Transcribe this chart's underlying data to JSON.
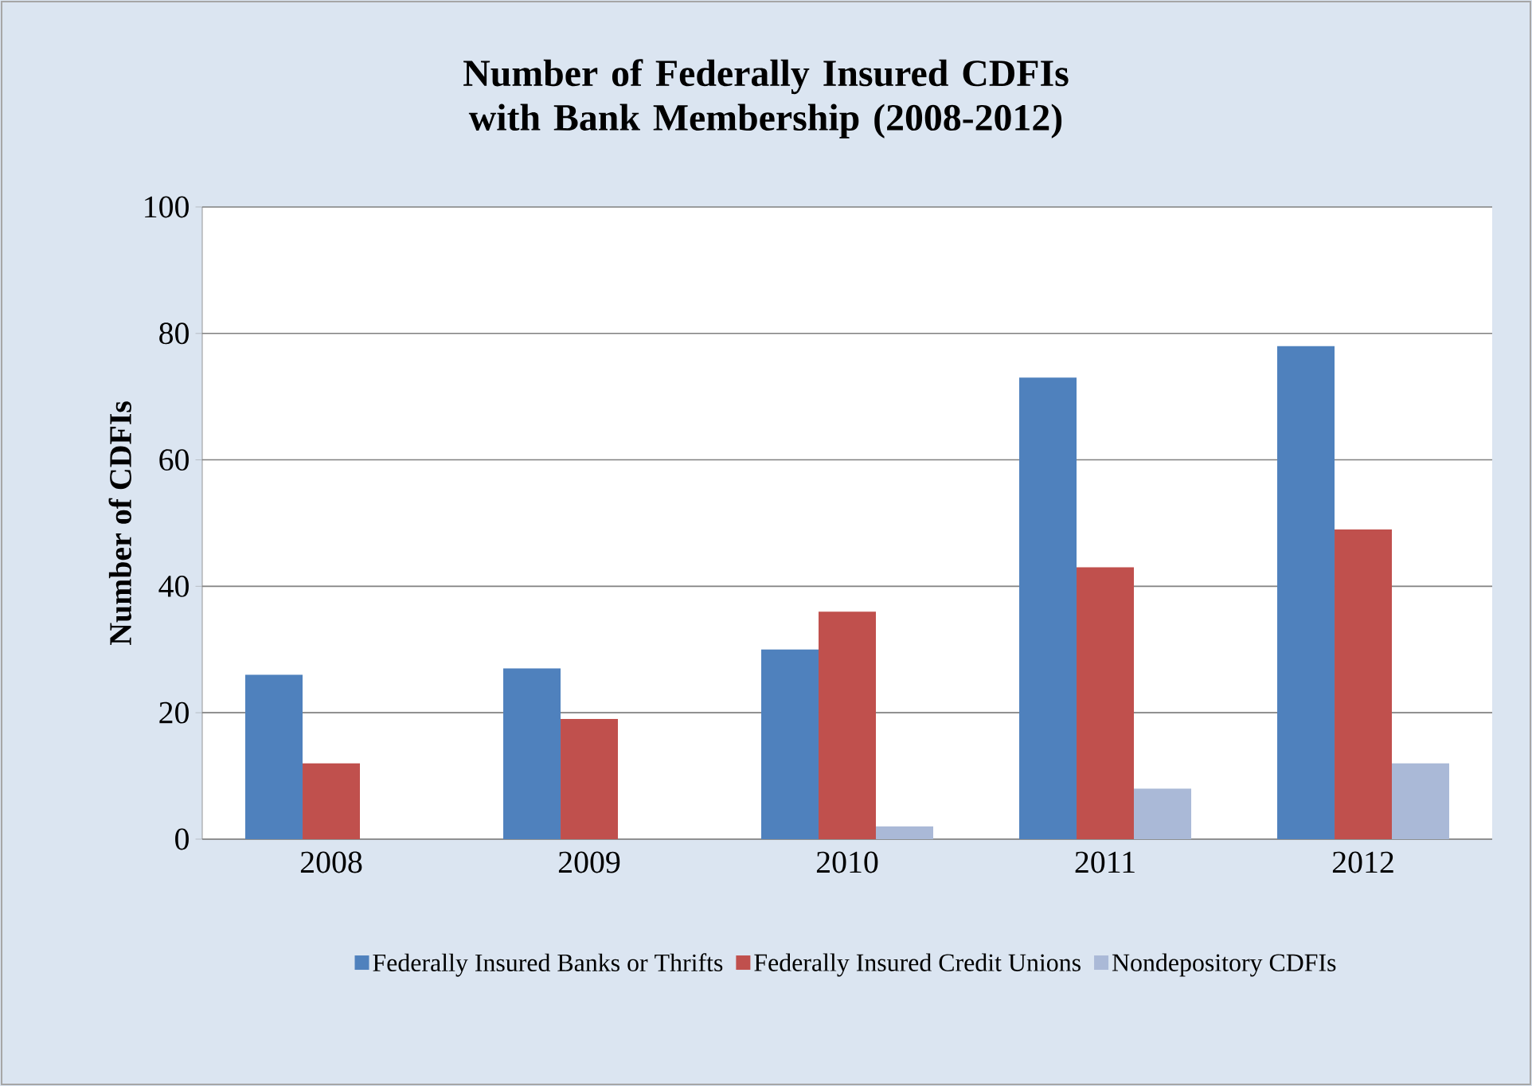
{
  "chart_data": {
    "type": "bar",
    "title": "Number of Federally Insured CDFIs with Bank Membership (2008-2012)",
    "ylabel": "Number of CDFIs",
    "categories": [
      "2008",
      "2009",
      "2010",
      "2011",
      "2012"
    ],
    "series": [
      {
        "name": "Federally Insured Banks or Thrifts",
        "color": "#4f81bd",
        "values": [
          26,
          27,
          30,
          73,
          78
        ]
      },
      {
        "name": "Federally Insured Credit Unions",
        "color": "#c0504d",
        "values": [
          12,
          19,
          36,
          43,
          49
        ]
      },
      {
        "name": "Nondepository CDFIs",
        "color": "#aab9d7",
        "values": [
          0,
          0,
          2,
          8,
          12
        ]
      }
    ],
    "ylim": [
      0,
      100
    ],
    "yticks": [
      0,
      20,
      40,
      60,
      80,
      100
    ],
    "grid": "y",
    "legend": "bottom"
  }
}
